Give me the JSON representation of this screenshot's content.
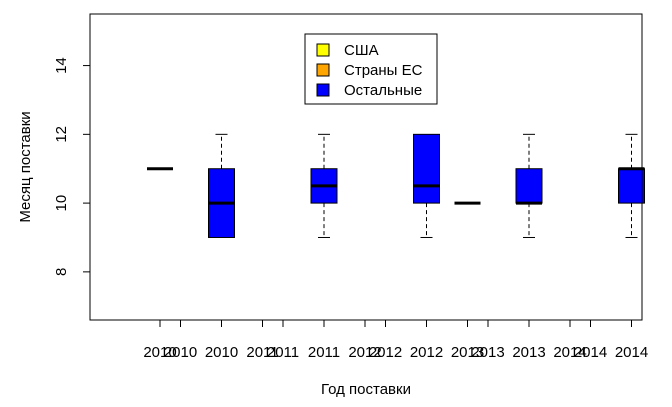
{
  "chart_data": {
    "type": "boxplot",
    "xlabel": "Год поставки",
    "ylabel": "Месяц поставки",
    "ylim": [
      6.6,
      15.5
    ],
    "y_ticks": [
      8,
      10,
      12,
      14
    ],
    "legend": {
      "position": "top-center",
      "entries": [
        {
          "label": "США",
          "color": "#FFFF00"
        },
        {
          "label": "Страны ЕС",
          "color": "#FFA500"
        },
        {
          "label": "Остальные",
          "color": "#0000FF"
        }
      ]
    },
    "x_tick_labels": [
      "2010",
      "2010",
      "2010",
      "2011",
      "2011",
      "2011",
      "2012",
      "2012",
      "2012",
      "2013",
      "2013",
      "2013",
      "2014",
      "2014",
      "2014"
    ],
    "boxes": [
      {
        "year": "2010",
        "group": "США",
        "min": 11,
        "q1": 11,
        "median": 11,
        "q3": 11,
        "max": 11
      },
      {
        "year": "2010",
        "group": "Остальные",
        "min": 9,
        "q1": 9,
        "median": 10,
        "q3": 11,
        "max": 12
      },
      {
        "year": "2011",
        "group": "Остальные",
        "min": 9,
        "q1": 10,
        "median": 10.5,
        "q3": 11,
        "max": 12
      },
      {
        "year": "2012",
        "group": "Остальные",
        "min": 9,
        "q1": 10,
        "median": 10.5,
        "q3": 12,
        "max": 12
      },
      {
        "year": "2013",
        "group": "США",
        "min": 10,
        "q1": 10,
        "median": 10,
        "q3": 10,
        "max": 10
      },
      {
        "year": "2013",
        "group": "Остальные",
        "min": 9,
        "q1": 10,
        "median": 10,
        "q3": 11,
        "max": 12
      },
      {
        "year": "2014",
        "group": "Остальные",
        "min": 9,
        "q1": 10,
        "median": 11,
        "q3": 11,
        "max": 12
      }
    ]
  }
}
